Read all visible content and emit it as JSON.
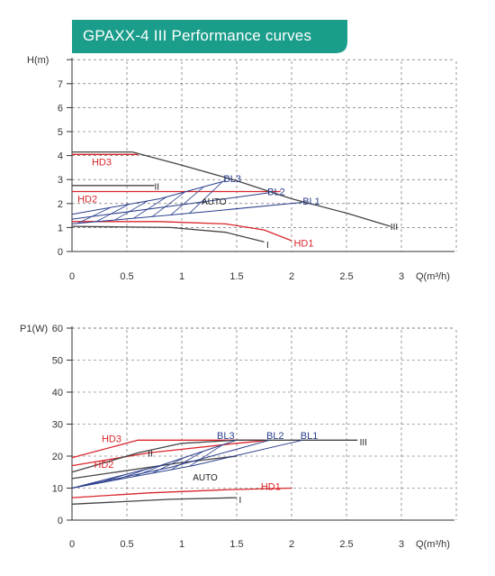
{
  "title": "GPAXX-4 III Performance curves",
  "colors": {
    "banner": "#1a9d8a",
    "hd": "#d9262c",
    "bl": "#2a3e8c",
    "fixed": "#444444",
    "grid": "#555555"
  },
  "chart_data": [
    {
      "type": "line",
      "ylabel": "H(m)",
      "xlabel": "Q(m³/h)",
      "xlim": [
        0,
        3.5
      ],
      "ylim": [
        0,
        8
      ],
      "x_ticks": [
        "0",
        "0.5",
        "1",
        "1.5",
        "2",
        "2.5",
        "3"
      ],
      "y_ticks": [
        "0",
        "1",
        "2",
        "3",
        "4",
        "5",
        "6",
        "7"
      ],
      "grid": true,
      "series": [
        {
          "name": "HD3",
          "color": "#d9262c",
          "points": [
            [
              0,
              4.05
            ],
            [
              0.6,
              4.05
            ]
          ]
        },
        {
          "name": "HD2",
          "color": "#d9262c",
          "points": [
            [
              0,
              2.5
            ],
            [
              1.9,
              2.5
            ]
          ]
        },
        {
          "name": "HD1",
          "color": "#d9262c",
          "points": [
            [
              0,
              1.25
            ],
            [
              0.8,
              1.25
            ],
            [
              1.4,
              1.15
            ],
            [
              1.75,
              0.9
            ],
            [
              2.0,
              0.45
            ]
          ]
        },
        {
          "name": "III",
          "color": "#444444",
          "points": [
            [
              0,
              4.15
            ],
            [
              0.55,
              4.15
            ],
            [
              1.0,
              3.6
            ],
            [
              1.5,
              2.95
            ],
            [
              2.0,
              2.2
            ],
            [
              2.5,
              1.6
            ],
            [
              2.9,
              1.05
            ]
          ]
        },
        {
          "name": "II",
          "color": "#444444",
          "points": [
            [
              0,
              2.75
            ],
            [
              0.75,
              2.75
            ]
          ]
        },
        {
          "name": "I",
          "color": "#444444",
          "points": [
            [
              0,
              1.05
            ],
            [
              0.9,
              1.0
            ],
            [
              1.4,
              0.8
            ],
            [
              1.75,
              0.4
            ]
          ]
        },
        {
          "name": "BL3",
          "color": "#2a3e8c",
          "points": [
            [
              0,
              1.55
            ],
            [
              0.8,
              2.2
            ],
            [
              1.4,
              2.95
            ]
          ]
        },
        {
          "name": "BL2",
          "color": "#2a3e8c",
          "points": [
            [
              0,
              1.35
            ],
            [
              1.0,
              1.95
            ],
            [
              1.8,
              2.45
            ]
          ]
        },
        {
          "name": "BL1",
          "color": "#2a3e8c",
          "points": [
            [
              0,
              1.15
            ],
            [
              1.2,
              1.65
            ],
            [
              2.1,
              2.05
            ]
          ]
        }
      ],
      "annotations": [
        {
          "text": "HD3",
          "x": 0.18,
          "y": 3.75,
          "color": "#d9262c"
        },
        {
          "text": "HD2",
          "x": 0.05,
          "y": 2.2,
          "color": "#d9262c"
        },
        {
          "text": "HD1",
          "x": 2.02,
          "y": 0.35,
          "color": "#d9262c"
        },
        {
          "text": "BL3",
          "x": 1.38,
          "y": 3.05,
          "color": "#2a3e8c"
        },
        {
          "text": "BL2",
          "x": 1.78,
          "y": 2.5,
          "color": "#2a3e8c"
        },
        {
          "text": "BL1",
          "x": 2.1,
          "y": 2.1,
          "color": "#2a3e8c"
        },
        {
          "text": "AUTO",
          "x": 1.18,
          "y": 2.1,
          "color": "#222222"
        },
        {
          "text": "III",
          "x": 2.9,
          "y": 1.05,
          "color": "#222222"
        },
        {
          "text": "II",
          "x": 0.75,
          "y": 2.72,
          "color": "#222222"
        },
        {
          "text": "I",
          "x": 1.77,
          "y": 0.3,
          "color": "#222222"
        }
      ]
    },
    {
      "type": "line",
      "ylabel": "P1(W)",
      "xlabel": "Q(m³/h)",
      "xlim": [
        0,
        3.5
      ],
      "ylim": [
        0,
        60
      ],
      "x_ticks": [
        "0",
        "0.5",
        "1",
        "1.5",
        "2",
        "2.5",
        "3"
      ],
      "y_ticks": [
        "0",
        "10",
        "20",
        "30",
        "40",
        "50",
        "60"
      ],
      "grid": true,
      "series": [
        {
          "name": "HD3",
          "color": "#d9262c",
          "points": [
            [
              0,
              19.5
            ],
            [
              0.6,
              25
            ],
            [
              1.75,
              25
            ]
          ]
        },
        {
          "name": "HD2",
          "color": "#d9262c",
          "points": [
            [
              0,
              17
            ],
            [
              0.7,
              21
            ],
            [
              1.5,
              24
            ],
            [
              1.8,
              25
            ]
          ]
        },
        {
          "name": "HD1",
          "color": "#d9262c",
          "points": [
            [
              0,
              7
            ],
            [
              0.7,
              8.5
            ],
            [
              1.4,
              9.5
            ],
            [
              2.0,
              10
            ]
          ]
        },
        {
          "name": "III",
          "color": "#444444",
          "points": [
            [
              0,
              15
            ],
            [
              0.6,
              21
            ],
            [
              1.0,
              24
            ],
            [
              1.5,
              25
            ],
            [
              2.6,
              25
            ]
          ]
        },
        {
          "name": "II",
          "color": "#444444",
          "points": [
            [
              0,
              13
            ],
            [
              1.0,
              18
            ],
            [
              1.5,
              20
            ]
          ]
        },
        {
          "name": "I",
          "color": "#444444",
          "points": [
            [
              0,
              5
            ],
            [
              0.9,
              6.5
            ],
            [
              1.5,
              7
            ]
          ]
        },
        {
          "name": "BL3",
          "color": "#2a3e8c",
          "points": [
            [
              0,
              10
            ],
            [
              0.8,
              17
            ],
            [
              1.5,
              25
            ]
          ]
        },
        {
          "name": "BL2",
          "color": "#2a3e8c",
          "points": [
            [
              0,
              10
            ],
            [
              0.9,
              16.5
            ],
            [
              1.8,
              25
            ]
          ]
        },
        {
          "name": "BL1",
          "color": "#2a3e8c",
          "points": [
            [
              0,
              10
            ],
            [
              1.1,
              17
            ],
            [
              2.1,
              25
            ]
          ]
        }
      ],
      "annotations": [
        {
          "text": "HD3",
          "x": 0.27,
          "y": 25.5,
          "color": "#d9262c"
        },
        {
          "text": "HD2",
          "x": 0.2,
          "y": 17.5,
          "color": "#d9262c"
        },
        {
          "text": "HD1",
          "x": 1.72,
          "y": 10.5,
          "color": "#d9262c"
        },
        {
          "text": "BL3",
          "x": 1.32,
          "y": 26.5,
          "color": "#2a3e8c"
        },
        {
          "text": "BL2",
          "x": 1.77,
          "y": 26.5,
          "color": "#2a3e8c"
        },
        {
          "text": "BL1",
          "x": 2.08,
          "y": 26.5,
          "color": "#2a3e8c"
        },
        {
          "text": "AUTO",
          "x": 1.1,
          "y": 13.5,
          "color": "#222222"
        },
        {
          "text": "III",
          "x": 2.62,
          "y": 24.5,
          "color": "#222222"
        },
        {
          "text": "II",
          "x": 0.69,
          "y": 21,
          "color": "#222222"
        },
        {
          "text": "I",
          "x": 1.52,
          "y": 6.5,
          "color": "#222222"
        }
      ]
    }
  ]
}
